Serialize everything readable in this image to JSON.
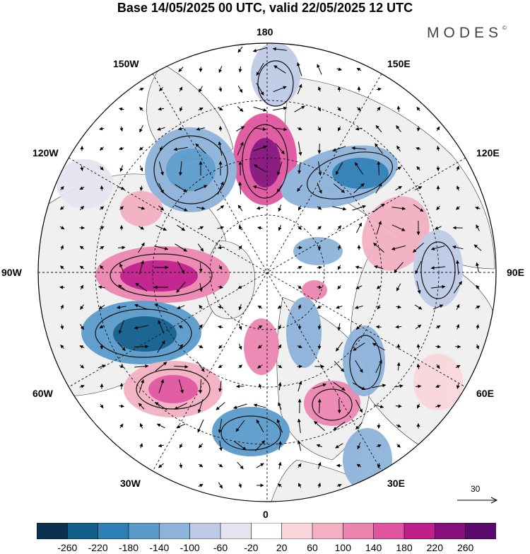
{
  "title": "Base 14/05/2025 00 UTC, valid 22/05/2025 12 UTC",
  "brand": "MODES",
  "brand_mark": "©",
  "longitude_labels": {
    "top": "180",
    "bottom": "0",
    "left": "90W",
    "right": "90E",
    "upper_left_outer": "150W",
    "upper_left_inner": "120W",
    "upper_right_outer": "150E",
    "upper_right_inner": "120E",
    "lower_left_inner": "60W",
    "lower_left_outer": "30W",
    "lower_right_inner": "60E",
    "lower_right_outer": "30E"
  },
  "reference_vector": {
    "value": "30"
  },
  "colorbar": {
    "labels": [
      "-260",
      "-220",
      "-180",
      "-140",
      "-100",
      "-60",
      "-20",
      "20",
      "60",
      "100",
      "140",
      "180",
      "220",
      "260"
    ],
    "colors": [
      "#0c3150",
      "#125f8e",
      "#2f7fb6",
      "#5b9bcb",
      "#8eb3da",
      "#bfcbe6",
      "#e5e5f1",
      "#ffffff",
      "#f9d6dc",
      "#f3b0c3",
      "#ec86b0",
      "#e055a0",
      "#c01e8b",
      "#86117d",
      "#5a0a6d"
    ]
  },
  "colors": {
    "land": "#f0f0f0",
    "ocean": "#ffffff",
    "contour": "#111111",
    "grid": "#111111"
  }
}
